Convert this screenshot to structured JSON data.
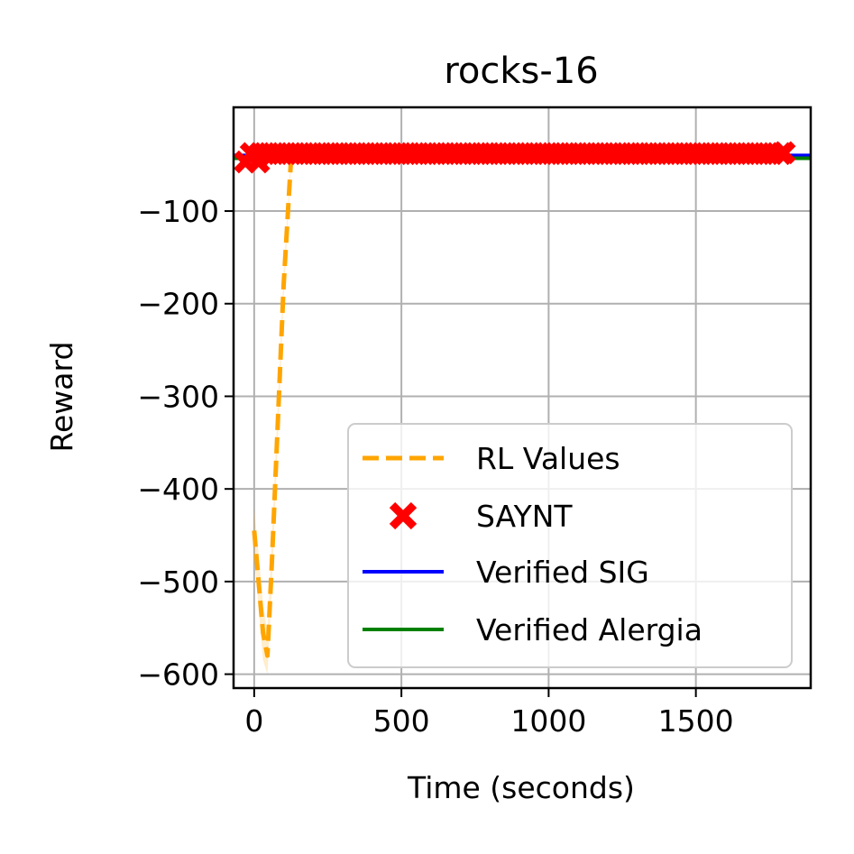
{
  "chart_data": {
    "type": "line",
    "title": "rocks-16",
    "xlabel": "Time (seconds)",
    "ylabel": "Reward",
    "xlim": [
      -70,
      1890
    ],
    "ylim": [
      -615,
      12
    ],
    "x_ticks": [
      0,
      500,
      1000,
      1500
    ],
    "x_tick_labels": [
      "0",
      "500",
      "1000",
      "1500"
    ],
    "y_ticks": [
      -600,
      -500,
      -400,
      -300,
      -200,
      -100
    ],
    "y_tick_labels": [
      "−600",
      "−500",
      "−400",
      "−300",
      "−200",
      "−100"
    ],
    "grid": true,
    "legend_position": "lower right",
    "series": [
      {
        "name": "RL Values",
        "style": "dashed-line",
        "color": "#ffa500",
        "x": [
          0,
          15,
          30,
          45,
          60,
          80,
          100,
          125
        ],
        "y": [
          -445,
          -500,
          -555,
          -580,
          -480,
          -330,
          -180,
          -45
        ],
        "band_upper": [
          -420,
          -470,
          -525,
          -555,
          -455,
          -310,
          -165,
          -38
        ],
        "band_lower": [
          -470,
          -530,
          -585,
          -600,
          -505,
          -350,
          -195,
          -52
        ]
      },
      {
        "name": "SAYNT",
        "style": "x-markers",
        "color": "#ff0000",
        "x": [
          -30,
          15,
          1800,
          -10,
          20,
          50,
          80,
          110,
          140,
          170,
          200,
          230,
          260,
          290,
          320,
          350,
          380,
          410,
          440,
          470,
          500,
          530,
          560,
          590,
          620,
          650,
          680,
          710,
          740,
          770,
          800,
          830,
          860,
          890,
          920,
          950,
          980,
          1010,
          1040,
          1070,
          1100,
          1130,
          1160,
          1190,
          1220,
          1250,
          1280,
          1310,
          1340,
          1370,
          1400,
          1430,
          1460,
          1490,
          1520,
          1550,
          1580,
          1610,
          1640,
          1670,
          1700,
          1730,
          1760,
          1790
        ],
        "y": [
          -47,
          -47,
          -37,
          -38,
          -38,
          -38,
          -38,
          -38,
          -38,
          -38,
          -38,
          -38,
          -38,
          -38,
          -38,
          -38,
          -38,
          -38,
          -38,
          -38,
          -38,
          -38,
          -38,
          -38,
          -38,
          -38,
          -38,
          -38,
          -38,
          -38,
          -38,
          -38,
          -38,
          -38,
          -38,
          -38,
          -38,
          -38,
          -38,
          -38,
          -38,
          -38,
          -38,
          -38,
          -38,
          -38,
          -38,
          -38,
          -38,
          -38,
          -38,
          -38,
          -38,
          -38,
          -38,
          -38,
          -38,
          -38,
          -38,
          -38,
          -38,
          -38,
          -38,
          -38
        ]
      },
      {
        "name": "Verified SIG",
        "style": "hline",
        "color": "#0000ff",
        "y": -40
      },
      {
        "name": "Verified Alergia",
        "style": "hline",
        "color": "#008000",
        "y": -43
      }
    ]
  }
}
